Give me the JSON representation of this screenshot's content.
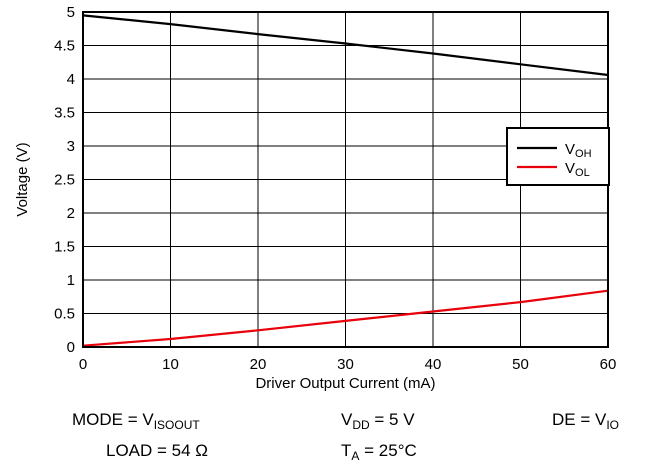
{
  "chart_data": {
    "type": "line",
    "xlabel": "Driver Output Current (mA)",
    "ylabel": "Voltage (V)",
    "xlim": [
      0,
      60
    ],
    "ylim": [
      0,
      5
    ],
    "xticks": [
      0,
      10,
      20,
      30,
      40,
      50,
      60
    ],
    "yticks": [
      0,
      0.5,
      1,
      1.5,
      2,
      2.5,
      3,
      3.5,
      4,
      4.5,
      5
    ],
    "ytick_labels": [
      "0",
      "0.5",
      "1",
      "1.5",
      "2",
      "2.5",
      "3",
      "3.5",
      "4",
      "4.5",
      "5"
    ],
    "xtick_labels": [
      "0",
      "10",
      "20",
      "30",
      "40",
      "50",
      "60"
    ],
    "grid": true,
    "legend_position": "right",
    "series": [
      {
        "name": "V_OH",
        "name_main": "V",
        "name_sub": "OH",
        "color": "#000000",
        "x": [
          0,
          10,
          20,
          30,
          40,
          50,
          60
        ],
        "y": [
          4.95,
          4.82,
          4.67,
          4.53,
          4.38,
          4.22,
          4.06
        ]
      },
      {
        "name": "V_OL",
        "name_main": "V",
        "name_sub": "OL",
        "color": "#e8000b",
        "x": [
          0,
          10,
          20,
          30,
          40,
          50,
          60
        ],
        "y": [
          0.02,
          0.12,
          0.25,
          0.39,
          0.53,
          0.67,
          0.84
        ]
      }
    ]
  },
  "conditions": {
    "mode_main": "MODE = V",
    "mode_sub": "ISOOUT",
    "vdd_main": "V",
    "vdd_sub": "DD",
    "vdd_value": " = 5 V",
    "de_main": "DE = V",
    "de_sub": "IO",
    "load": "LOAD = 54 Ω",
    "ta_main": "T",
    "ta_sub": "A",
    "ta_value": " = 25°C"
  }
}
